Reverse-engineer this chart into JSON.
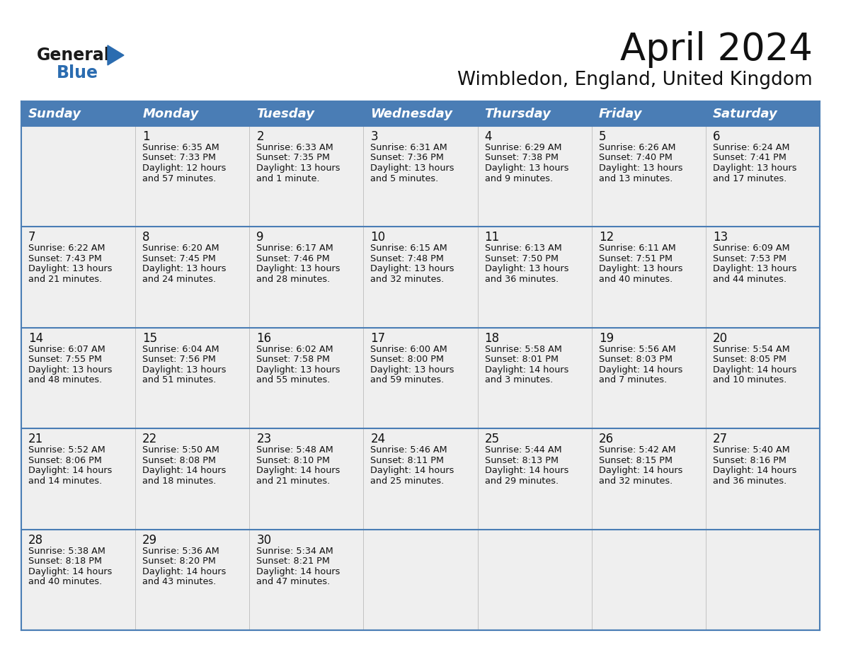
{
  "title": "April 2024",
  "subtitle": "Wimbledon, England, United Kingdom",
  "header_color": "#4a7db5",
  "header_text_color": "#FFFFFF",
  "cell_bg_color": "#EFEFEF",
  "empty_cell_bg": "#EFEFEF",
  "border_color": "#4a7db5",
  "cell_border_color": "#CCCCCC",
  "days_of_week": [
    "Sunday",
    "Monday",
    "Tuesday",
    "Wednesday",
    "Thursday",
    "Friday",
    "Saturday"
  ],
  "title_fontsize": 38,
  "subtitle_fontsize": 19,
  "header_fontsize": 13,
  "cell_fontsize": 9.2,
  "day_num_fontsize": 12,
  "logo_color1": "#1a1a1a",
  "logo_color2": "#2B6CB0",
  "logo_triangle_color": "#2B6CB0",
  "calendar_data": [
    [
      {
        "day": "",
        "sunrise": "",
        "sunset": "",
        "daylight": ""
      },
      {
        "day": "1",
        "sunrise": "6:35 AM",
        "sunset": "7:33 PM",
        "daylight": "12 hours",
        "daylight2": "and 57 minutes."
      },
      {
        "day": "2",
        "sunrise": "6:33 AM",
        "sunset": "7:35 PM",
        "daylight": "13 hours",
        "daylight2": "and 1 minute."
      },
      {
        "day": "3",
        "sunrise": "6:31 AM",
        "sunset": "7:36 PM",
        "daylight": "13 hours",
        "daylight2": "and 5 minutes."
      },
      {
        "day": "4",
        "sunrise": "6:29 AM",
        "sunset": "7:38 PM",
        "daylight": "13 hours",
        "daylight2": "and 9 minutes."
      },
      {
        "day": "5",
        "sunrise": "6:26 AM",
        "sunset": "7:40 PM",
        "daylight": "13 hours",
        "daylight2": "and 13 minutes."
      },
      {
        "day": "6",
        "sunrise": "6:24 AM",
        "sunset": "7:41 PM",
        "daylight": "13 hours",
        "daylight2": "and 17 minutes."
      }
    ],
    [
      {
        "day": "7",
        "sunrise": "6:22 AM",
        "sunset": "7:43 PM",
        "daylight": "13 hours",
        "daylight2": "and 21 minutes."
      },
      {
        "day": "8",
        "sunrise": "6:20 AM",
        "sunset": "7:45 PM",
        "daylight": "13 hours",
        "daylight2": "and 24 minutes."
      },
      {
        "day": "9",
        "sunrise": "6:17 AM",
        "sunset": "7:46 PM",
        "daylight": "13 hours",
        "daylight2": "and 28 minutes."
      },
      {
        "day": "10",
        "sunrise": "6:15 AM",
        "sunset": "7:48 PM",
        "daylight": "13 hours",
        "daylight2": "and 32 minutes."
      },
      {
        "day": "11",
        "sunrise": "6:13 AM",
        "sunset": "7:50 PM",
        "daylight": "13 hours",
        "daylight2": "and 36 minutes."
      },
      {
        "day": "12",
        "sunrise": "6:11 AM",
        "sunset": "7:51 PM",
        "daylight": "13 hours",
        "daylight2": "and 40 minutes."
      },
      {
        "day": "13",
        "sunrise": "6:09 AM",
        "sunset": "7:53 PM",
        "daylight": "13 hours",
        "daylight2": "and 44 minutes."
      }
    ],
    [
      {
        "day": "14",
        "sunrise": "6:07 AM",
        "sunset": "7:55 PM",
        "daylight": "13 hours",
        "daylight2": "and 48 minutes."
      },
      {
        "day": "15",
        "sunrise": "6:04 AM",
        "sunset": "7:56 PM",
        "daylight": "13 hours",
        "daylight2": "and 51 minutes."
      },
      {
        "day": "16",
        "sunrise": "6:02 AM",
        "sunset": "7:58 PM",
        "daylight": "13 hours",
        "daylight2": "and 55 minutes."
      },
      {
        "day": "17",
        "sunrise": "6:00 AM",
        "sunset": "8:00 PM",
        "daylight": "13 hours",
        "daylight2": "and 59 minutes."
      },
      {
        "day": "18",
        "sunrise": "5:58 AM",
        "sunset": "8:01 PM",
        "daylight": "14 hours",
        "daylight2": "and 3 minutes."
      },
      {
        "day": "19",
        "sunrise": "5:56 AM",
        "sunset": "8:03 PM",
        "daylight": "14 hours",
        "daylight2": "and 7 minutes."
      },
      {
        "day": "20",
        "sunrise": "5:54 AM",
        "sunset": "8:05 PM",
        "daylight": "14 hours",
        "daylight2": "and 10 minutes."
      }
    ],
    [
      {
        "day": "21",
        "sunrise": "5:52 AM",
        "sunset": "8:06 PM",
        "daylight": "14 hours",
        "daylight2": "and 14 minutes."
      },
      {
        "day": "22",
        "sunrise": "5:50 AM",
        "sunset": "8:08 PM",
        "daylight": "14 hours",
        "daylight2": "and 18 minutes."
      },
      {
        "day": "23",
        "sunrise": "5:48 AM",
        "sunset": "8:10 PM",
        "daylight": "14 hours",
        "daylight2": "and 21 minutes."
      },
      {
        "day": "24",
        "sunrise": "5:46 AM",
        "sunset": "8:11 PM",
        "daylight": "14 hours",
        "daylight2": "and 25 minutes."
      },
      {
        "day": "25",
        "sunrise": "5:44 AM",
        "sunset": "8:13 PM",
        "daylight": "14 hours",
        "daylight2": "and 29 minutes."
      },
      {
        "day": "26",
        "sunrise": "5:42 AM",
        "sunset": "8:15 PM",
        "daylight": "14 hours",
        "daylight2": "and 32 minutes."
      },
      {
        "day": "27",
        "sunrise": "5:40 AM",
        "sunset": "8:16 PM",
        "daylight": "14 hours",
        "daylight2": "and 36 minutes."
      }
    ],
    [
      {
        "day": "28",
        "sunrise": "5:38 AM",
        "sunset": "8:18 PM",
        "daylight": "14 hours",
        "daylight2": "and 40 minutes."
      },
      {
        "day": "29",
        "sunrise": "5:36 AM",
        "sunset": "8:20 PM",
        "daylight": "14 hours",
        "daylight2": "and 43 minutes."
      },
      {
        "day": "30",
        "sunrise": "5:34 AM",
        "sunset": "8:21 PM",
        "daylight": "14 hours",
        "daylight2": "and 47 minutes."
      },
      {
        "day": "",
        "sunrise": "",
        "sunset": "",
        "daylight": "",
        "daylight2": ""
      },
      {
        "day": "",
        "sunrise": "",
        "sunset": "",
        "daylight": "",
        "daylight2": ""
      },
      {
        "day": "",
        "sunrise": "",
        "sunset": "",
        "daylight": "",
        "daylight2": ""
      },
      {
        "day": "",
        "sunrise": "",
        "sunset": "",
        "daylight": "",
        "daylight2": ""
      }
    ]
  ]
}
